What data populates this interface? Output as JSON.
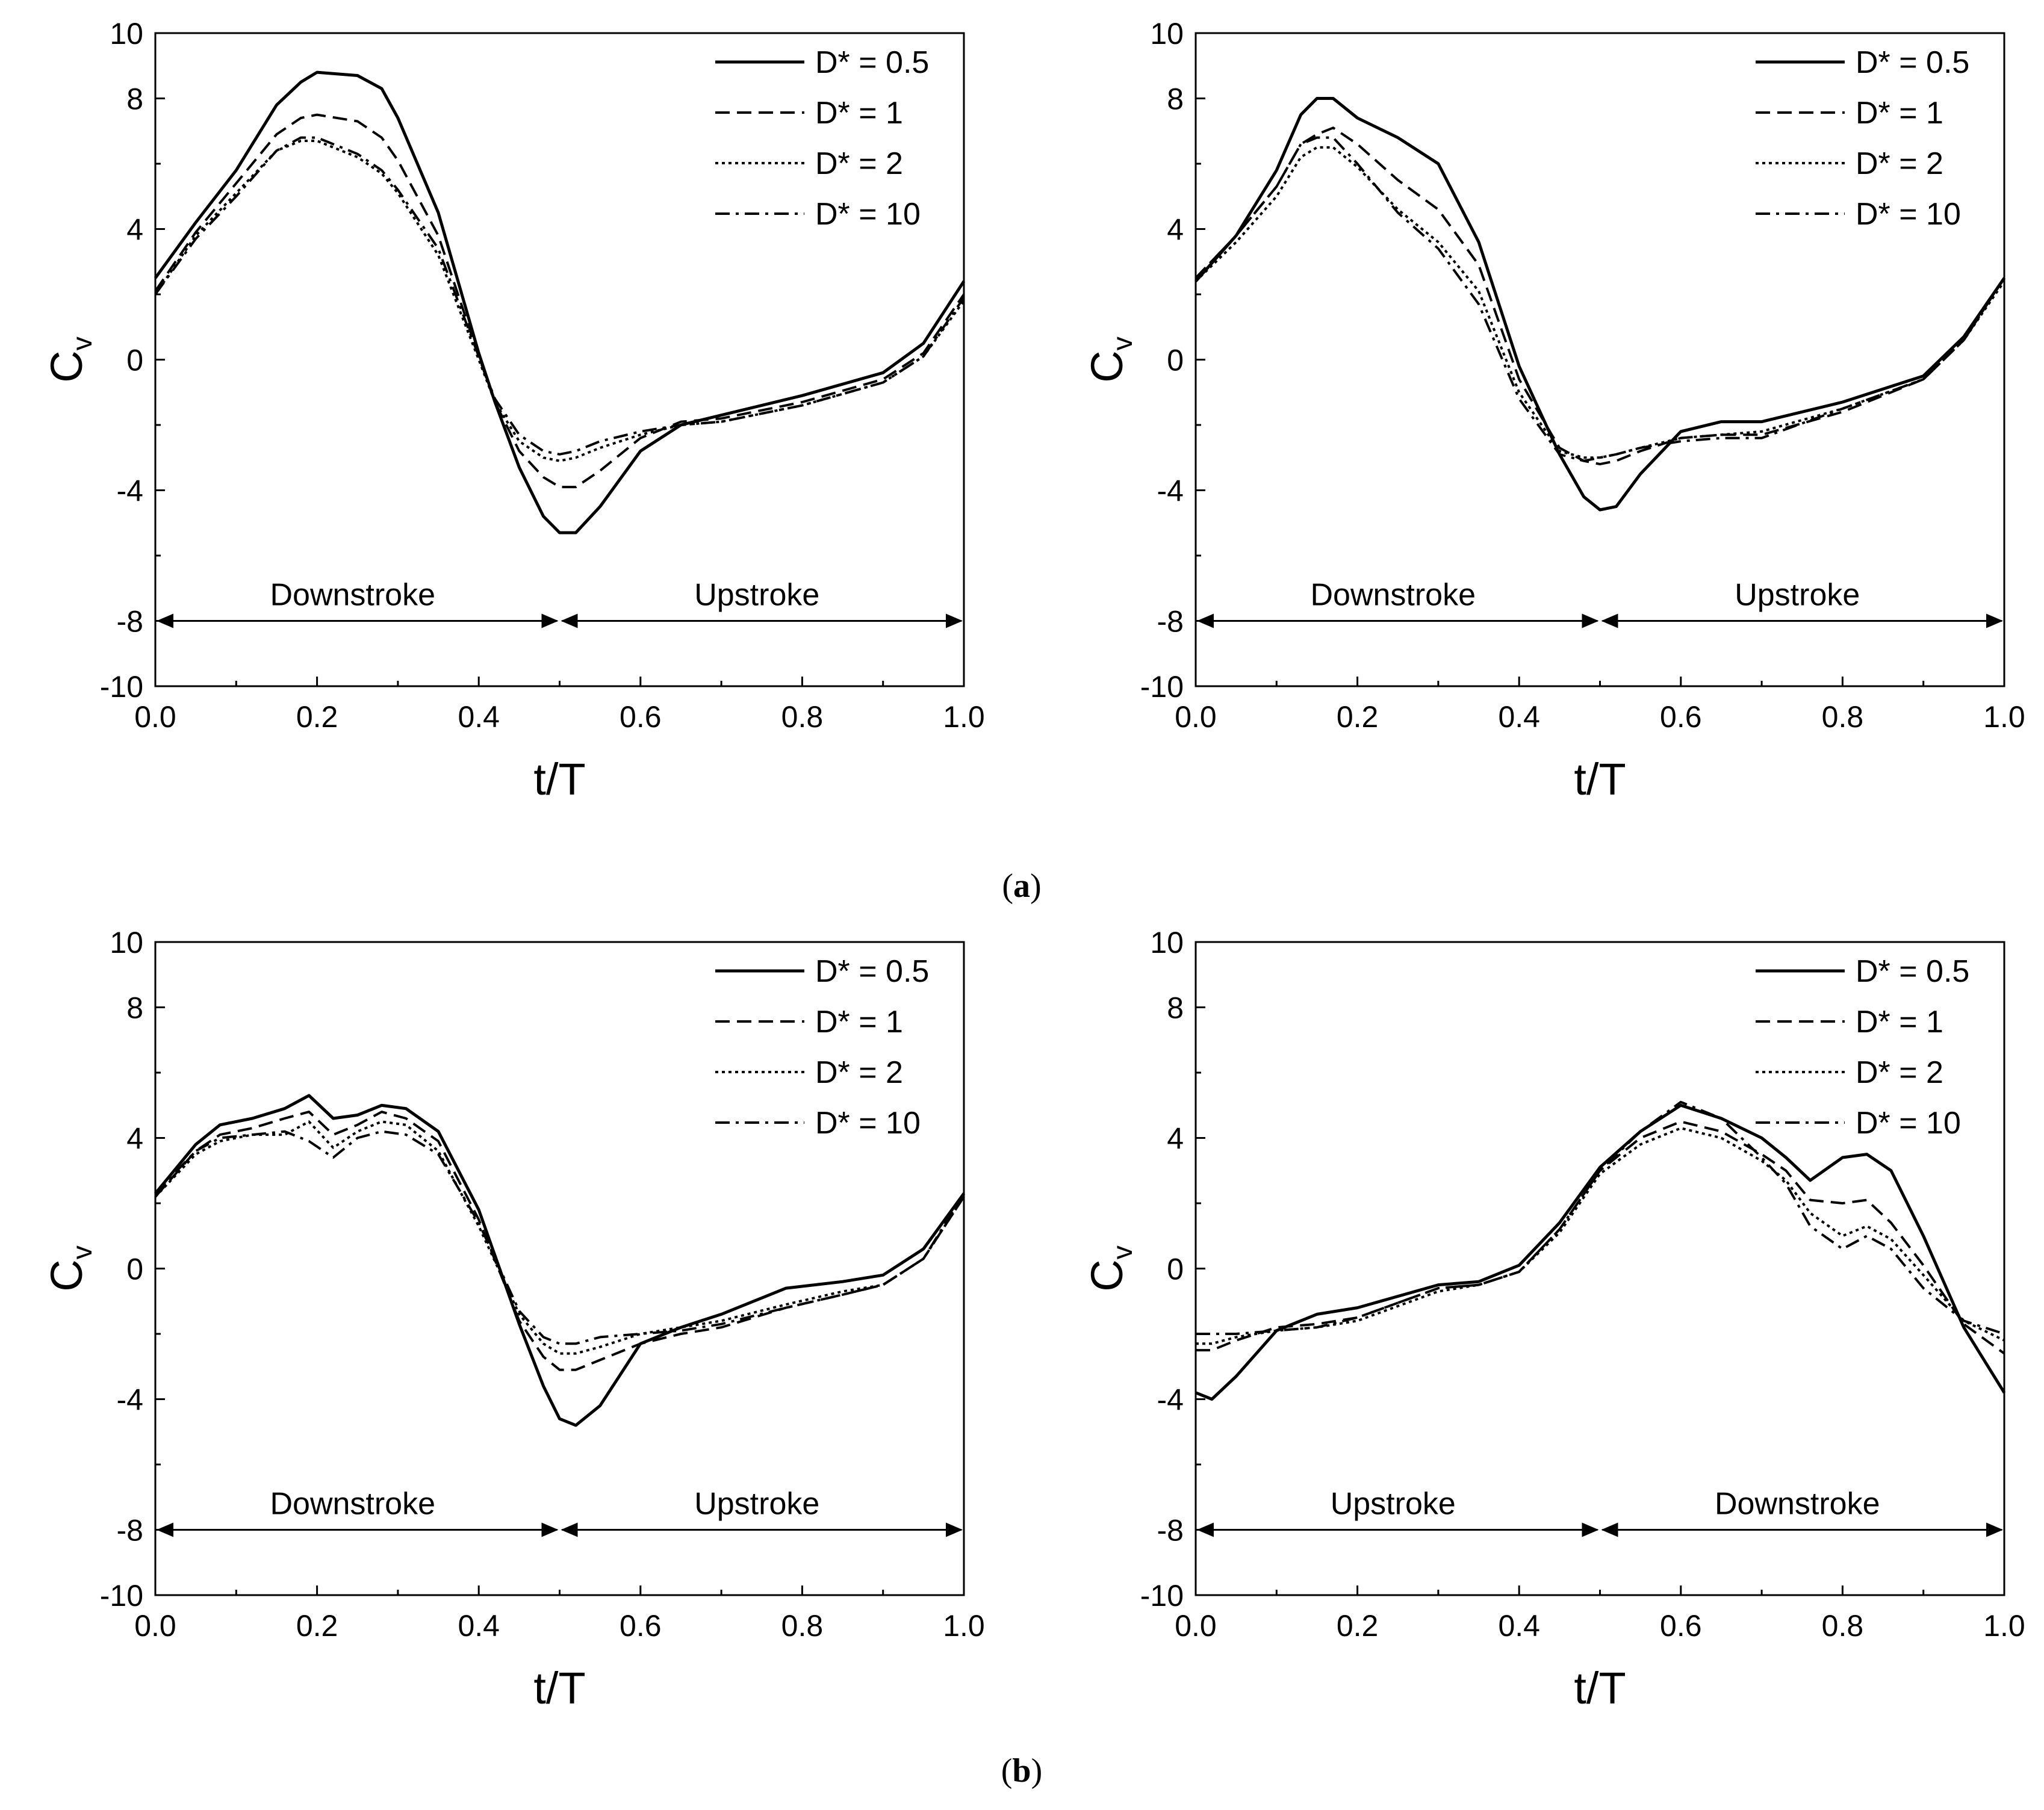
{
  "figure": {
    "caption_a": "a",
    "caption_b": "b"
  },
  "legend_labels": [
    "D* = 0.5",
    "D* = 1",
    "D* = 2",
    "D* = 10"
  ],
  "chart_data": [
    {
      "type": "line",
      "panel": "a-left",
      "xlabel": "t/T",
      "ylabel": "Cv",
      "xlim": [
        0,
        1
      ],
      "ylim": [
        -10,
        10
      ],
      "xticks": [
        "0.0",
        "0.2",
        "0.4",
        "0.6",
        "0.8",
        "1.0"
      ],
      "yticks": [
        "10",
        "8",
        "4",
        "0",
        "-4",
        "-8",
        "-10"
      ],
      "phases": [
        {
          "label": "Downstroke",
          "from": 0,
          "to": 0.5
        },
        {
          "label": "Upstroke",
          "from": 0.5,
          "to": 1
        }
      ],
      "series": [
        {
          "name": "D* = 0.5",
          "style": "solid",
          "x": [
            0,
            0.05,
            0.1,
            0.15,
            0.18,
            0.2,
            0.25,
            0.28,
            0.3,
            0.35,
            0.4,
            0.42,
            0.45,
            0.48,
            0.5,
            0.52,
            0.55,
            0.6,
            0.65,
            0.7,
            0.8,
            0.9,
            0.95,
            1.0
          ],
          "y": [
            2.5,
            4.2,
            5.8,
            7.8,
            8.5,
            8.8,
            8.7,
            8.3,
            7.4,
            4.5,
            0.2,
            -1.3,
            -3.3,
            -4.8,
            -5.3,
            -5.3,
            -4.5,
            -2.8,
            -2.0,
            -1.7,
            -1.1,
            -0.4,
            0.5,
            2.4
          ]
        },
        {
          "name": "D* = 1",
          "style": "dashed",
          "x": [
            0,
            0.05,
            0.1,
            0.15,
            0.18,
            0.2,
            0.25,
            0.28,
            0.3,
            0.35,
            0.4,
            0.42,
            0.45,
            0.48,
            0.5,
            0.52,
            0.55,
            0.6,
            0.65,
            0.7,
            0.8,
            0.9,
            0.95,
            1.0
          ],
          "y": [
            2.1,
            3.9,
            5.4,
            6.9,
            7.4,
            7.5,
            7.3,
            6.8,
            6.1,
            3.8,
            0.1,
            -1.3,
            -2.8,
            -3.6,
            -3.9,
            -3.9,
            -3.4,
            -2.4,
            -1.9,
            -1.8,
            -1.3,
            -0.6,
            0.2,
            2.0
          ]
        },
        {
          "name": "D* = 2",
          "style": "dotted",
          "x": [
            0,
            0.05,
            0.1,
            0.15,
            0.18,
            0.2,
            0.25,
            0.28,
            0.3,
            0.35,
            0.4,
            0.42,
            0.45,
            0.48,
            0.5,
            0.52,
            0.55,
            0.6,
            0.65,
            0.7,
            0.8,
            0.9,
            0.95,
            1.0
          ],
          "y": [
            2.0,
            3.8,
            5.1,
            6.4,
            6.7,
            6.7,
            6.2,
            5.7,
            5.1,
            3.2,
            0.0,
            -1.3,
            -2.5,
            -3.0,
            -3.1,
            -3.0,
            -2.7,
            -2.3,
            -2.0,
            -1.9,
            -1.4,
            -0.7,
            0.1,
            1.8
          ]
        },
        {
          "name": "D* = 10",
          "style": "dashdot",
          "x": [
            0,
            0.05,
            0.1,
            0.15,
            0.18,
            0.2,
            0.25,
            0.28,
            0.3,
            0.35,
            0.4,
            0.42,
            0.45,
            0.48,
            0.5,
            0.52,
            0.55,
            0.6,
            0.65,
            0.7,
            0.8,
            0.9,
            0.95,
            1.0
          ],
          "y": [
            2.0,
            3.7,
            5.0,
            6.4,
            6.8,
            6.8,
            6.3,
            5.8,
            5.2,
            3.4,
            0.1,
            -1.2,
            -2.3,
            -2.8,
            -2.9,
            -2.8,
            -2.5,
            -2.2,
            -2.0,
            -1.9,
            -1.4,
            -0.7,
            0.1,
            1.9
          ]
        }
      ]
    },
    {
      "type": "line",
      "panel": "a-right",
      "xlabel": "t/T",
      "ylabel": "Cv",
      "xlim": [
        0,
        1
      ],
      "ylim": [
        -10,
        10
      ],
      "xticks": [
        "0.0",
        "0.2",
        "0.4",
        "0.6",
        "0.8",
        "1.0"
      ],
      "yticks": [
        "10",
        "8",
        "4",
        "0",
        "-4",
        "-8",
        "-10"
      ],
      "phases": [
        {
          "label": "Downstroke",
          "from": 0,
          "to": 0.5
        },
        {
          "label": "Upstroke",
          "from": 0.5,
          "to": 1
        }
      ],
      "series": [
        {
          "name": "D* = 0.5",
          "style": "solid",
          "x": [
            0,
            0.05,
            0.1,
            0.13,
            0.15,
            0.17,
            0.2,
            0.25,
            0.3,
            0.35,
            0.4,
            0.45,
            0.48,
            0.5,
            0.52,
            0.55,
            0.6,
            0.65,
            0.7,
            0.8,
            0.9,
            0.95,
            1.0
          ],
          "y": [
            2.4,
            3.8,
            5.8,
            7.5,
            8.0,
            8.0,
            7.4,
            6.8,
            6.0,
            3.6,
            -0.2,
            -2.9,
            -4.2,
            -4.6,
            -4.5,
            -3.5,
            -2.2,
            -1.9,
            -1.9,
            -1.3,
            -0.5,
            0.7,
            2.5
          ]
        },
        {
          "name": "D* = 1",
          "style": "dashed",
          "x": [
            0,
            0.05,
            0.1,
            0.13,
            0.15,
            0.17,
            0.2,
            0.25,
            0.3,
            0.35,
            0.4,
            0.45,
            0.48,
            0.5,
            0.52,
            0.55,
            0.6,
            0.65,
            0.7,
            0.8,
            0.9,
            0.95,
            1.0
          ],
          "y": [
            2.5,
            3.8,
            5.3,
            6.6,
            6.9,
            7.1,
            6.6,
            5.5,
            4.6,
            2.9,
            -0.6,
            -2.7,
            -3.1,
            -3.2,
            -3.1,
            -2.8,
            -2.4,
            -2.3,
            -2.3,
            -1.6,
            -0.6,
            0.6,
            2.5
          ]
        },
        {
          "name": "D* = 2",
          "style": "dotted",
          "x": [
            0,
            0.05,
            0.1,
            0.13,
            0.15,
            0.17,
            0.2,
            0.25,
            0.3,
            0.35,
            0.4,
            0.45,
            0.48,
            0.5,
            0.52,
            0.55,
            0.6,
            0.65,
            0.7,
            0.8,
            0.9,
            0.95,
            1.0
          ],
          "y": [
            2.4,
            3.6,
            5.0,
            6.2,
            6.5,
            6.5,
            5.9,
            4.6,
            3.6,
            2.1,
            -1.0,
            -2.8,
            -3.0,
            -3.0,
            -2.9,
            -2.7,
            -2.4,
            -2.3,
            -2.2,
            -1.5,
            -0.6,
            0.6,
            2.4
          ]
        },
        {
          "name": "D* = 10",
          "style": "dashdot",
          "x": [
            0,
            0.05,
            0.1,
            0.13,
            0.15,
            0.17,
            0.2,
            0.25,
            0.3,
            0.35,
            0.4,
            0.45,
            0.48,
            0.5,
            0.52,
            0.55,
            0.6,
            0.65,
            0.7,
            0.8,
            0.9,
            0.95,
            1.0
          ],
          "y": [
            2.5,
            3.8,
            5.3,
            6.6,
            6.8,
            6.8,
            6.0,
            4.5,
            3.4,
            1.7,
            -1.2,
            -2.9,
            -3.1,
            -3.0,
            -2.9,
            -2.7,
            -2.5,
            -2.4,
            -2.4,
            -1.5,
            -0.6,
            0.6,
            2.5
          ]
        }
      ]
    },
    {
      "type": "line",
      "panel": "b-left",
      "xlabel": "t/T",
      "ylabel": "Cv",
      "xlim": [
        0,
        1
      ],
      "ylim": [
        -10,
        10
      ],
      "xticks": [
        "0.0",
        "0.2",
        "0.4",
        "0.6",
        "0.8",
        "1.0"
      ],
      "yticks": [
        "10",
        "8",
        "4",
        "0",
        "-4",
        "-8",
        "-10"
      ],
      "phases": [
        {
          "label": "Downstroke",
          "from": 0,
          "to": 0.5
        },
        {
          "label": "Upstroke",
          "from": 0.5,
          "to": 1
        }
      ],
      "series": [
        {
          "name": "D* = 0.5",
          "style": "solid",
          "x": [
            0,
            0.05,
            0.08,
            0.12,
            0.16,
            0.19,
            0.22,
            0.25,
            0.28,
            0.31,
            0.35,
            0.4,
            0.45,
            0.48,
            0.5,
            0.52,
            0.55,
            0.6,
            0.65,
            0.7,
            0.78,
            0.85,
            0.9,
            0.95,
            1.0
          ],
          "y": [
            2.3,
            3.8,
            4.4,
            4.6,
            4.9,
            5.3,
            4.6,
            4.7,
            5.0,
            4.9,
            4.2,
            1.8,
            -1.7,
            -3.6,
            -4.6,
            -4.8,
            -4.2,
            -2.3,
            -1.8,
            -1.4,
            -0.6,
            -0.4,
            -0.2,
            0.6,
            2.3
          ]
        },
        {
          "name": "D* = 1",
          "style": "dashed",
          "x": [
            0,
            0.05,
            0.08,
            0.12,
            0.16,
            0.19,
            0.22,
            0.25,
            0.28,
            0.31,
            0.35,
            0.4,
            0.45,
            0.48,
            0.5,
            0.52,
            0.55,
            0.6,
            0.65,
            0.7,
            0.78,
            0.85,
            0.9,
            0.95,
            1.0
          ],
          "y": [
            2.2,
            3.6,
            4.1,
            4.3,
            4.6,
            4.8,
            4.1,
            4.4,
            4.8,
            4.6,
            3.9,
            1.5,
            -1.6,
            -2.7,
            -3.1,
            -3.1,
            -2.8,
            -2.3,
            -2.0,
            -1.8,
            -1.2,
            -0.8,
            -0.5,
            0.3,
            2.2
          ]
        },
        {
          "name": "D* = 2",
          "style": "dotted",
          "x": [
            0,
            0.05,
            0.08,
            0.12,
            0.16,
            0.19,
            0.22,
            0.25,
            0.28,
            0.31,
            0.35,
            0.4,
            0.45,
            0.48,
            0.5,
            0.52,
            0.55,
            0.6,
            0.65,
            0.7,
            0.78,
            0.85,
            0.9,
            0.95,
            1.0
          ],
          "y": [
            2.2,
            3.5,
            3.9,
            4.1,
            4.1,
            4.5,
            3.7,
            4.2,
            4.5,
            4.4,
            3.6,
            1.3,
            -1.4,
            -2.3,
            -2.6,
            -2.6,
            -2.4,
            -2.0,
            -1.8,
            -1.6,
            -1.1,
            -0.7,
            -0.5,
            0.3,
            2.2
          ]
        },
        {
          "name": "D* = 10",
          "style": "dashdot",
          "x": [
            0,
            0.05,
            0.08,
            0.12,
            0.16,
            0.19,
            0.22,
            0.25,
            0.28,
            0.31,
            0.35,
            0.4,
            0.45,
            0.48,
            0.5,
            0.52,
            0.55,
            0.6,
            0.65,
            0.7,
            0.78,
            0.85,
            0.9,
            0.95,
            1.0
          ],
          "y": [
            2.3,
            3.6,
            4.0,
            4.1,
            4.2,
            3.9,
            3.4,
            4.0,
            4.2,
            4.1,
            3.5,
            1.4,
            -1.3,
            -2.1,
            -2.3,
            -2.3,
            -2.1,
            -2.0,
            -1.9,
            -1.7,
            -1.2,
            -0.8,
            -0.5,
            0.3,
            2.3
          ]
        }
      ]
    },
    {
      "type": "line",
      "panel": "b-right",
      "xlabel": "t/T",
      "ylabel": "Cv",
      "xlim": [
        0,
        1
      ],
      "ylim": [
        -10,
        10
      ],
      "xticks": [
        "0.0",
        "0.2",
        "0.4",
        "0.6",
        "0.8",
        "1.0"
      ],
      "yticks": [
        "10",
        "8",
        "4",
        "0",
        "-4",
        "-8",
        "-10"
      ],
      "phases": [
        {
          "label": "Upstroke",
          "from": 0,
          "to": 0.5
        },
        {
          "label": "Downstroke",
          "from": 0.5,
          "to": 1
        }
      ],
      "series": [
        {
          "name": "D* = 0.5",
          "style": "solid",
          "x": [
            0,
            0.02,
            0.05,
            0.1,
            0.15,
            0.2,
            0.3,
            0.35,
            0.4,
            0.45,
            0.5,
            0.55,
            0.6,
            0.65,
            0.7,
            0.73,
            0.76,
            0.8,
            0.83,
            0.86,
            0.9,
            0.95,
            1.0
          ],
          "y": [
            -3.8,
            -4.0,
            -3.3,
            -1.9,
            -1.4,
            -1.2,
            -0.5,
            -0.4,
            0.1,
            1.4,
            3.1,
            4.2,
            5.0,
            4.6,
            4.0,
            3.4,
            2.7,
            3.4,
            3.5,
            3.0,
            1.0,
            -1.8,
            -3.8
          ]
        },
        {
          "name": "D* = 1",
          "style": "dashed",
          "x": [
            0,
            0.02,
            0.05,
            0.1,
            0.15,
            0.2,
            0.3,
            0.35,
            0.4,
            0.45,
            0.5,
            0.55,
            0.6,
            0.65,
            0.7,
            0.73,
            0.76,
            0.8,
            0.83,
            0.86,
            0.9,
            0.95,
            1.0
          ],
          "y": [
            -2.5,
            -2.5,
            -2.2,
            -1.8,
            -1.7,
            -1.5,
            -0.6,
            -0.5,
            -0.1,
            1.2,
            3.0,
            4.0,
            4.5,
            4.2,
            3.5,
            3.0,
            2.1,
            2.0,
            2.1,
            1.4,
            0.1,
            -1.7,
            -2.6
          ]
        },
        {
          "name": "D* = 2",
          "style": "dotted",
          "x": [
            0,
            0.02,
            0.05,
            0.1,
            0.15,
            0.2,
            0.3,
            0.35,
            0.4,
            0.45,
            0.5,
            0.55,
            0.6,
            0.65,
            0.7,
            0.73,
            0.76,
            0.8,
            0.83,
            0.86,
            0.9,
            0.95,
            1.0
          ],
          "y": [
            -2.3,
            -2.3,
            -2.1,
            -1.9,
            -1.8,
            -1.6,
            -0.7,
            -0.5,
            -0.1,
            1.1,
            2.9,
            3.8,
            4.3,
            4.0,
            3.3,
            2.7,
            1.7,
            1.0,
            1.3,
            0.9,
            -0.2,
            -1.6,
            -2.2
          ]
        },
        {
          "name": "D* = 10",
          "style": "dashdot",
          "x": [
            0,
            0.02,
            0.05,
            0.1,
            0.15,
            0.2,
            0.3,
            0.35,
            0.4,
            0.45,
            0.5,
            0.55,
            0.6,
            0.65,
            0.7,
            0.73,
            0.76,
            0.8,
            0.83,
            0.86,
            0.9,
            0.95,
            1.0
          ],
          "y": [
            -2.0,
            -2.0,
            -2.0,
            -1.9,
            -1.8,
            -1.5,
            -0.6,
            -0.5,
            -0.1,
            1.2,
            3.0,
            4.2,
            5.1,
            4.6,
            3.4,
            2.6,
            1.3,
            0.6,
            1.0,
            0.6,
            -0.6,
            -1.6,
            -2.0
          ]
        }
      ]
    }
  ]
}
